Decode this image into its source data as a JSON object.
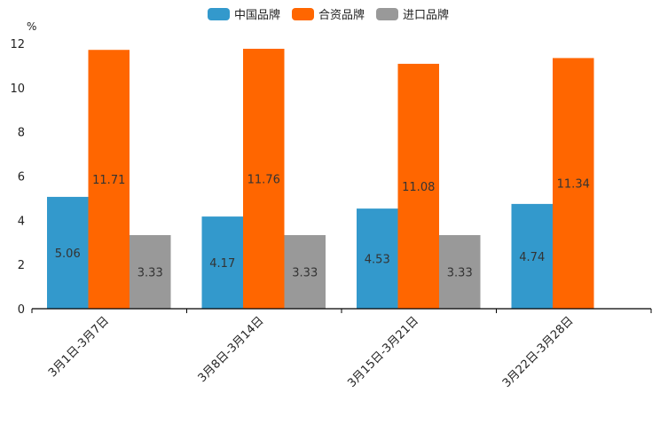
{
  "chart_data": {
    "type": "bar",
    "title": "",
    "ylabel": "%",
    "xlabel": "",
    "ylim": [
      0,
      12
    ],
    "yticks": [
      0,
      2,
      4,
      6,
      8,
      10,
      12
    ],
    "grid": false,
    "legend_position": "top-center",
    "categories": [
      "3月1日-3月7日",
      "3月8日-3月14日",
      "3月15日-3月21日",
      "3月22日-3月28日"
    ],
    "series": [
      {
        "name": "中国品牌",
        "color": "#3399cc",
        "values": [
          5.06,
          4.17,
          4.53,
          4.74
        ]
      },
      {
        "name": "合资品牌",
        "color": "#ff6600",
        "values": [
          11.71,
          11.76,
          11.08,
          11.34
        ]
      },
      {
        "name": "进口品牌",
        "color": "#999999",
        "values": [
          3.33,
          3.33,
          3.33,
          null
        ]
      }
    ]
  }
}
